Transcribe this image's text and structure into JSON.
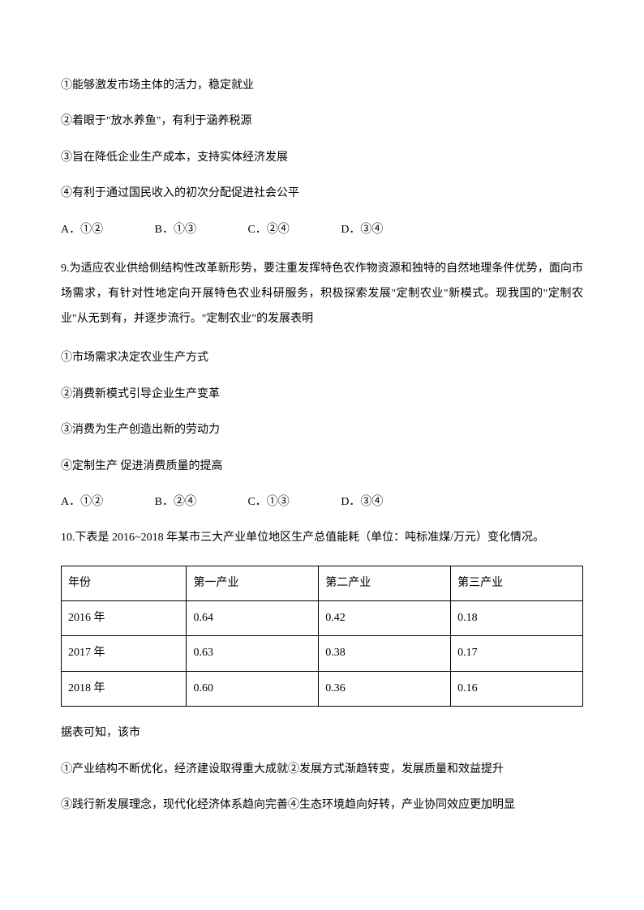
{
  "items": {
    "q8_opt1": "①能够激发市场主体的活力，稳定就业",
    "q8_opt2": "②着眼于\"放水养鱼\"，有利于涵养税源",
    "q8_opt3": "③旨在降低企业生产成本，支持实体经济发展",
    "q8_opt4": "④有利于通过国民收入的初次分配促进社会公平",
    "q8_choices": {
      "A": "A．①②",
      "B": "B．①③",
      "C": "C．②④",
      "D": "D．③④"
    },
    "q9_text": "9.为适应农业供给侧结构性改革新形势，要注重发挥特色农作物资源和独特的自然地理条件优势，面向市场需求，有针对性地定向开展特色农业科研服务，积极探索发展\"定制农业\"新模式。现我国的\"定制农业\"从无到有，并逐步流行。\"定制农业\"的发展表明",
    "q9_opt1": "①市场需求决定农业生产方式",
    "q9_opt2": "②消费新模式引导企业生产变革",
    "q9_opt3": "③消费为生产创造出新的劳动力",
    "q9_opt4": "④定制生产  促进消费质量的提高",
    "q9_choices": {
      "A": "A．①②",
      "B": "B．②④",
      "C": "C．①③",
      "D": "D．③④"
    },
    "q10_text": "10.下表是 2016~2018 年某市三大产业单位地区生产总值能耗（单位：吨标准煤/万元）变化情况。",
    "q10_footer": "据表可知，该市",
    "q10_opt12": "①产业结构不断优化，经济建设取得重大成就②发展方式渐趋转变，发展质量和效益提升",
    "q10_opt34": "③践行新发展理念，现代化经济体系趋向完善④生态环境趋向好转，产业协同效应更加明显"
  },
  "table": {
    "headers": [
      "年份",
      "第一产业",
      "第二产业",
      "第三产业"
    ],
    "rows": [
      [
        "2016 年",
        "0.64",
        "0.42",
        "0.18"
      ],
      [
        "2017 年",
        "0.63",
        "0.38",
        "0.17"
      ],
      [
        "2018 年",
        "0.60",
        "0.36",
        "0.16"
      ]
    ]
  }
}
